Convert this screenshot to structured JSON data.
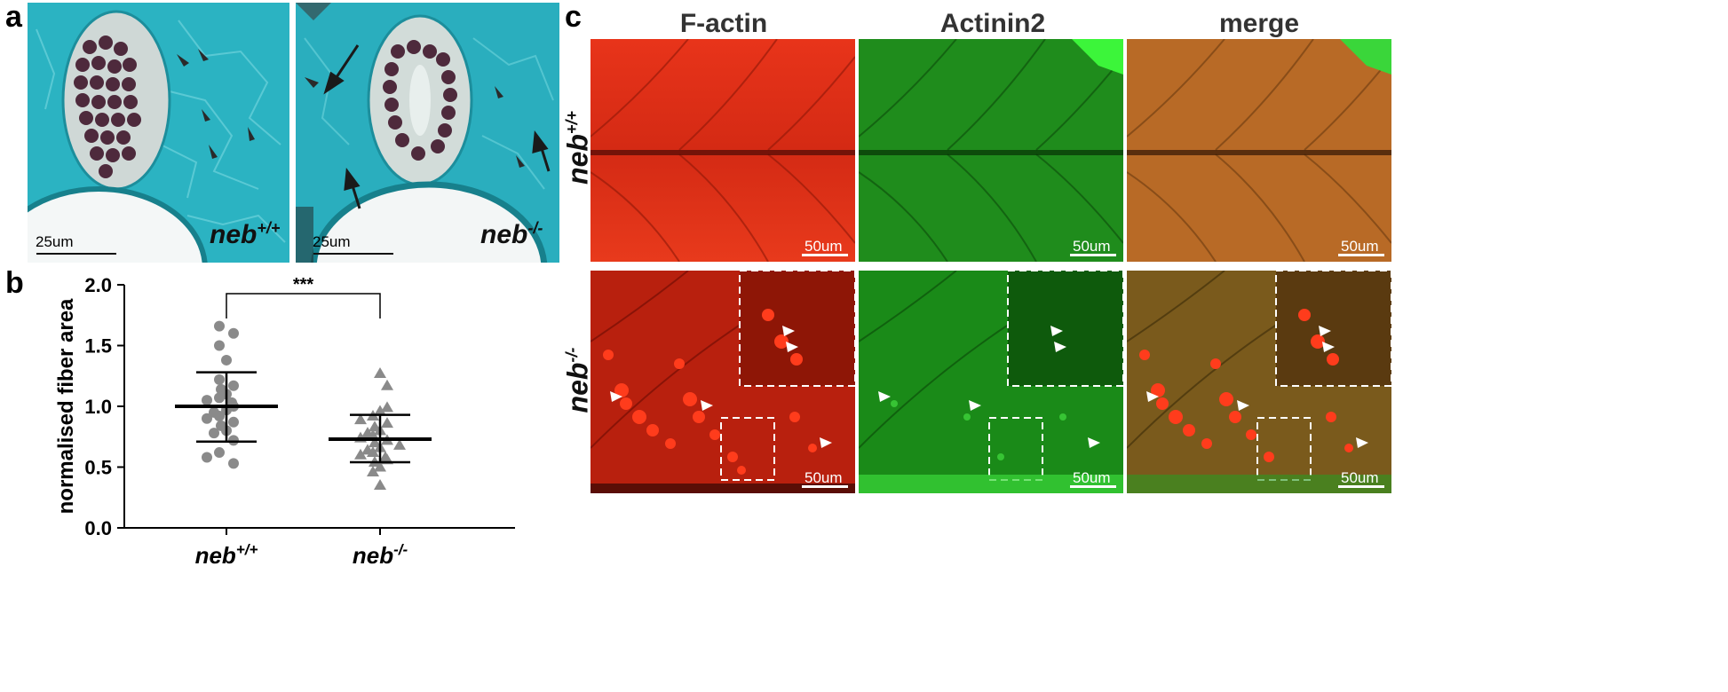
{
  "panels": {
    "a": {
      "letter": "a",
      "left_label": {
        "gene": "neb",
        "sup": "+/+"
      },
      "right_label": {
        "gene": "neb",
        "sup": "-/-"
      },
      "scalebar": "25um"
    },
    "b": {
      "letter": "b",
      "significance": "***"
    },
    "c": {
      "letter": "c",
      "columns": [
        "F-actin",
        "Actinin2",
        "merge"
      ],
      "rows": [
        {
          "gene": "neb",
          "sup": "+/+"
        },
        {
          "gene": "neb",
          "sup": "-/-"
        }
      ],
      "scalebar": "50um"
    }
  },
  "chart_data": {
    "type": "scatter",
    "ylabel": "normalised fiber area",
    "xlabel": "",
    "ylim": [
      0.0,
      2.0
    ],
    "yticks": [
      "0.0",
      "0.5",
      "1.0",
      "1.5",
      "2.0"
    ],
    "categories": [
      {
        "gene": "neb",
        "sup": "+/+"
      },
      {
        "gene": "neb",
        "sup": "-/-"
      }
    ],
    "series": [
      {
        "marker": "circle",
        "color": "#8a8a8a",
        "mean": 1.0,
        "sd_upper": 1.28,
        "sd_lower": 0.71,
        "values": [
          1.66,
          1.6,
          1.5,
          1.38,
          1.22,
          1.17,
          1.14,
          1.1,
          1.07,
          1.05,
          1.03,
          1.0,
          0.97,
          0.95,
          0.92,
          0.9,
          0.87,
          0.84,
          0.8,
          0.78,
          0.72,
          0.62,
          0.58,
          0.53
        ]
      },
      {
        "marker": "triangle",
        "color": "#8a8a8a",
        "mean": 0.73,
        "sd_upper": 0.93,
        "sd_lower": 0.54,
        "values": [
          1.27,
          1.17,
          0.99,
          0.96,
          0.92,
          0.89,
          0.86,
          0.83,
          0.8,
          0.78,
          0.76,
          0.74,
          0.72,
          0.7,
          0.68,
          0.66,
          0.64,
          0.62,
          0.6,
          0.58,
          0.56,
          0.54,
          0.5,
          0.46,
          0.35
        ]
      }
    ]
  }
}
